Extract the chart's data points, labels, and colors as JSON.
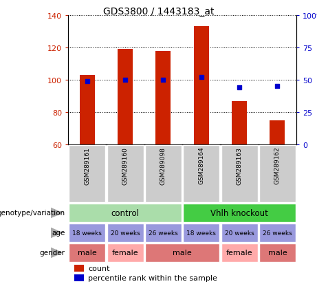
{
  "title": "GDS3800 / 1443183_at",
  "samples": [
    "GSM289161",
    "GSM289160",
    "GSM289098",
    "GSM289164",
    "GSM289163",
    "GSM289162"
  ],
  "counts": [
    103,
    119,
    118,
    133,
    87,
    75
  ],
  "percentile_ranks": [
    49,
    50,
    50,
    52,
    44,
    45
  ],
  "ylim_left": [
    60,
    140
  ],
  "ylim_right": [
    0,
    100
  ],
  "yticks_left": [
    60,
    80,
    100,
    120,
    140
  ],
  "yticks_right": [
    0,
    25,
    50,
    75,
    100
  ],
  "bar_color": "#cc2200",
  "dot_color": "#0000cc",
  "sample_bg": "#cccccc",
  "genotype_label": "genotype/variation",
  "age_label": "age",
  "gender_label": "gender",
  "genotype_groups": [
    {
      "name": "control",
      "start": 0,
      "end": 3,
      "color": "#aaddaa"
    },
    {
      "name": "Vhlh knockout",
      "start": 3,
      "end": 6,
      "color": "#44cc44"
    }
  ],
  "age_values": [
    "18 weeks",
    "20 weeks",
    "26 weeks",
    "18 weeks",
    "20 weeks",
    "26 weeks"
  ],
  "age_color": "#9999dd",
  "gender_values": [
    "male",
    "female",
    "male",
    "male",
    "female",
    "male"
  ],
  "gender_spans": [
    {
      "label": "male",
      "start": 0,
      "end": 1,
      "color": "#dd7777"
    },
    {
      "label": "female",
      "start": 1,
      "end": 2,
      "color": "#ffaaaa"
    },
    {
      "label": "male",
      "start": 2,
      "end": 4,
      "color": "#dd7777"
    },
    {
      "label": "female",
      "start": 4,
      "end": 5,
      "color": "#ffaaaa"
    },
    {
      "label": "male",
      "start": 5,
      "end": 6,
      "color": "#dd7777"
    }
  ],
  "legend_count_color": "#cc2200",
  "legend_dot_color": "#0000cc"
}
